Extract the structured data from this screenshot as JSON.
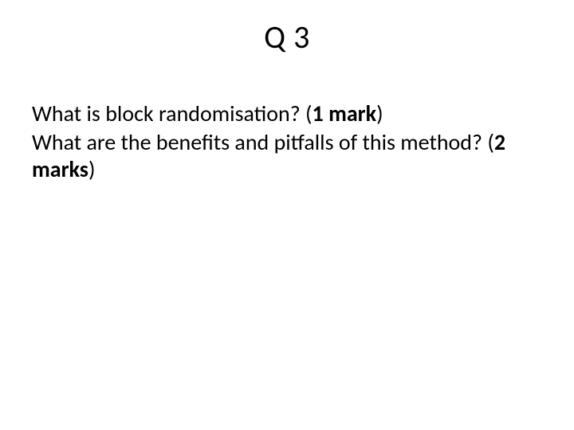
{
  "slide": {
    "title": "Q 3",
    "body": {
      "line1_text": "What is block randomisation? (",
      "line1_marks": "1 mark",
      "line1_close": ")",
      "line2_text": "What are the benefits and pitfalls of this method? (",
      "line2_marks": "2 marks",
      "line2_close": ")"
    }
  },
  "style": {
    "background_color": "#ffffff",
    "text_color": "#000000",
    "title_fontsize": 40,
    "body_fontsize": 28,
    "font_family": "Calibri"
  }
}
